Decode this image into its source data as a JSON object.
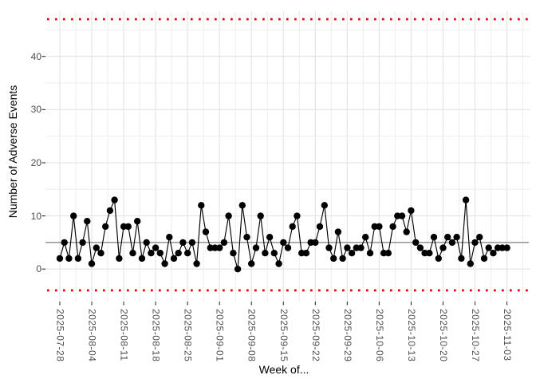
{
  "chart_data": {
    "type": "line",
    "title": "",
    "xlabel": "Week of...",
    "ylabel": "Number of Adverse Events",
    "x_unit": "day",
    "start_date": "2025-07-28",
    "end_date": "2025-11-03",
    "values": [
      2,
      5,
      2,
      10,
      2,
      5,
      9,
      1,
      4,
      3,
      8,
      11,
      13,
      2,
      8,
      8,
      3,
      9,
      2,
      5,
      3,
      4,
      3,
      1,
      6,
      2,
      3,
      5,
      3,
      5,
      1,
      12,
      7,
      4,
      4,
      4,
      5,
      10,
      3,
      0,
      12,
      6,
      1,
      4,
      10,
      3,
      6,
      3,
      1,
      5,
      4,
      8,
      10,
      3,
      3,
      5,
      5,
      8,
      12,
      4,
      2,
      7,
      2,
      4,
      3,
      4,
      4,
      6,
      3,
      8,
      8,
      3,
      3,
      8,
      10,
      10,
      7,
      11,
      5,
      4,
      3,
      3,
      6,
      2,
      4,
      6,
      5,
      6,
      2,
      13,
      1,
      5,
      6,
      2,
      4,
      3,
      4,
      4,
      4
    ],
    "x_tick_labels": [
      "2025-07-28",
      "2025-08-04",
      "2025-08-11",
      "2025-08-18",
      "2025-08-25",
      "2025-09-01",
      "2025-09-08",
      "2025-09-15",
      "2025-09-22",
      "2025-09-29",
      "2025-10-06",
      "2025-10-13",
      "2025-10-20",
      "2025-10-27",
      "2025-11-03"
    ],
    "y_ticks": [
      0,
      10,
      20,
      30,
      40
    ],
    "ylim": [
      -6.5,
      48.5
    ],
    "center_line": 5,
    "upper_limit": 47,
    "lower_limit": -4,
    "grid": true,
    "legend": false,
    "colors": {
      "series": "#000000",
      "center_line": "#7f7f7f",
      "limit_lines": "#e60000",
      "grid_major": "#e3e3e3",
      "grid_minor": "#ededed",
      "axis_text": "#4d4d4d",
      "tick_mark": "#333333"
    }
  }
}
